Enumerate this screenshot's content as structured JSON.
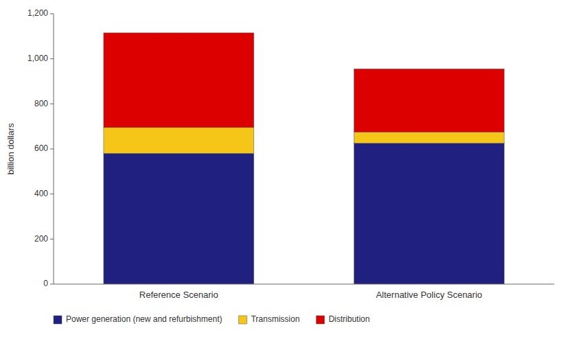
{
  "chart_data": {
    "type": "bar",
    "stacked": true,
    "categories": [
      "Reference Scenario",
      "Alternative Policy Scenario"
    ],
    "series": [
      {
        "name": "Power generation (new and refurbishment)",
        "color": "#1f2080",
        "values": [
          580,
          625
        ]
      },
      {
        "name": "Transmission",
        "color": "#f5c518",
        "values": [
          115,
          50
        ]
      },
      {
        "name": "Distribution",
        "color": "#dd0000",
        "values": [
          420,
          280
        ]
      }
    ],
    "ylabel": "billion dollars",
    "ylim": [
      0,
      1200
    ],
    "yticks": [
      0,
      200,
      400,
      600,
      800,
      {
        "value": 1000,
        "label": "1,000"
      },
      {
        "value": 1200,
        "label": "1,200"
      }
    ],
    "grid": false,
    "legend": "bottom"
  }
}
